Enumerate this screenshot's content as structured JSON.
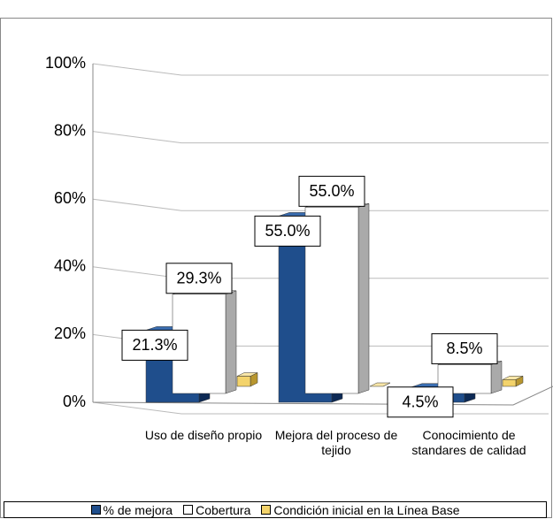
{
  "chart_data": {
    "type": "bar3d",
    "categories": [
      "Uso de diseño propio",
      "Mejora del proceso de tejido",
      "Conocimiento de standares de calidad"
    ],
    "series": [
      {
        "name": "% de mejora",
        "color": "#1f4e8c",
        "values": [
          21.3,
          55.0,
          4.5
        ],
        "value_labels": [
          "21.3%",
          "55.0%",
          "4.5%"
        ]
      },
      {
        "name": "Cobertura",
        "color": "#ffffff",
        "values": [
          29.3,
          55.0,
          8.5
        ],
        "value_labels": [
          "29.3%",
          "55.0%",
          "8.5%"
        ]
      },
      {
        "name": "Condición inicial en la Línea Base",
        "color": "#f3d36b",
        "values": [
          3,
          0,
          2
        ]
      }
    ],
    "ylim": [
      0,
      100
    ],
    "yticks": [
      {
        "value": 0,
        "label": "0%"
      },
      {
        "value": 20,
        "label": "20%"
      },
      {
        "value": 40,
        "label": "40%"
      },
      {
        "value": 60,
        "label": "60%"
      },
      {
        "value": 80,
        "label": "80%"
      },
      {
        "value": 100,
        "label": "100%"
      }
    ],
    "grid": true,
    "legend": "bottom"
  }
}
